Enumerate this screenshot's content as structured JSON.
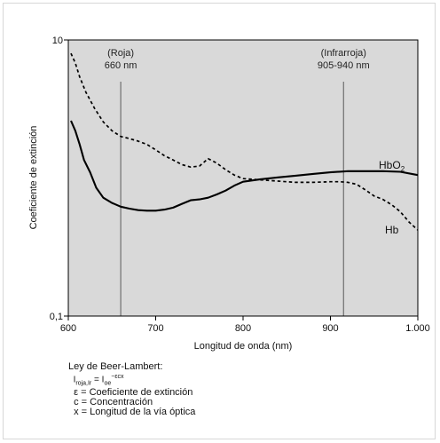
{
  "chart_data": {
    "type": "line",
    "xlabel": "Longitud de onda (nm)",
    "ylabel": "Coeficiente de extinción",
    "x_ticks": [
      {
        "value": 600,
        "label": "600"
      },
      {
        "value": 700,
        "label": "700"
      },
      {
        "value": 800,
        "label": "800"
      },
      {
        "value": 900,
        "label": "900"
      },
      {
        "value": 1000,
        "label": "1.000"
      }
    ],
    "y_ticks": [
      {
        "value": 0.1,
        "label": "0,1"
      },
      {
        "value": 10,
        "label": "10"
      }
    ],
    "xlim": [
      600,
      1000
    ],
    "ylim": [
      0.1,
      10
    ],
    "y_scale": "log",
    "background": "#d9d9d9",
    "reference_lines": [
      {
        "x": 660,
        "label_top": "(Roja)",
        "label_bottom": "660 nm"
      },
      {
        "x": 915,
        "label_top": "(Infrarroja)",
        "label_bottom": "905-940 nm"
      }
    ],
    "series": [
      {
        "name": "HbO",
        "name_sub": "2",
        "style": "solid",
        "color": "#000000",
        "points": [
          [
            603,
            2.6
          ],
          [
            608,
            2.2
          ],
          [
            613,
            1.75
          ],
          [
            618,
            1.35
          ],
          [
            625,
            1.1
          ],
          [
            632,
            0.85
          ],
          [
            640,
            0.72
          ],
          [
            650,
            0.66
          ],
          [
            660,
            0.62
          ],
          [
            670,
            0.6
          ],
          [
            680,
            0.585
          ],
          [
            690,
            0.58
          ],
          [
            700,
            0.58
          ],
          [
            710,
            0.59
          ],
          [
            720,
            0.61
          ],
          [
            730,
            0.65
          ],
          [
            740,
            0.69
          ],
          [
            750,
            0.7
          ],
          [
            760,
            0.72
          ],
          [
            770,
            0.76
          ],
          [
            780,
            0.81
          ],
          [
            790,
            0.88
          ],
          [
            800,
            0.94
          ],
          [
            820,
            0.98
          ],
          [
            840,
            1.01
          ],
          [
            860,
            1.04
          ],
          [
            880,
            1.07
          ],
          [
            900,
            1.1
          ],
          [
            920,
            1.12
          ],
          [
            940,
            1.12
          ],
          [
            960,
            1.12
          ],
          [
            980,
            1.11
          ],
          [
            1000,
            1.05
          ]
        ]
      },
      {
        "name": "Hb",
        "name_sub": "",
        "style": "dashed",
        "color": "#000000",
        "points": [
          [
            603,
            8.0
          ],
          [
            608,
            6.8
          ],
          [
            613,
            5.4
          ],
          [
            620,
            4.2
          ],
          [
            630,
            3.2
          ],
          [
            640,
            2.55
          ],
          [
            650,
            2.2
          ],
          [
            660,
            2.0
          ],
          [
            670,
            1.93
          ],
          [
            680,
            1.85
          ],
          [
            690,
            1.75
          ],
          [
            700,
            1.6
          ],
          [
            710,
            1.45
          ],
          [
            720,
            1.35
          ],
          [
            730,
            1.25
          ],
          [
            740,
            1.2
          ],
          [
            750,
            1.22
          ],
          [
            760,
            1.38
          ],
          [
            770,
            1.28
          ],
          [
            780,
            1.15
          ],
          [
            790,
            1.05
          ],
          [
            800,
            0.99
          ],
          [
            820,
            0.97
          ],
          [
            840,
            0.95
          ],
          [
            860,
            0.93
          ],
          [
            880,
            0.93
          ],
          [
            900,
            0.94
          ],
          [
            910,
            0.94
          ],
          [
            920,
            0.93
          ],
          [
            930,
            0.9
          ],
          [
            940,
            0.82
          ],
          [
            950,
            0.74
          ],
          [
            960,
            0.7
          ],
          [
            970,
            0.64
          ],
          [
            980,
            0.57
          ],
          [
            990,
            0.48
          ],
          [
            1000,
            0.42
          ]
        ]
      }
    ]
  },
  "notes": {
    "title": "Ley de Beer-Lambert:",
    "formula_I": "I",
    "formula_I_sub": "roja,Ir",
    "formula_eq": " = I",
    "formula_I0_sub": "oe",
    "formula_exp": "−εcx",
    "line_epsilon": "ε = Coeficiente de extinción",
    "line_c": "c = Concentración",
    "line_x": "x = Longitud de la vía óptica"
  }
}
